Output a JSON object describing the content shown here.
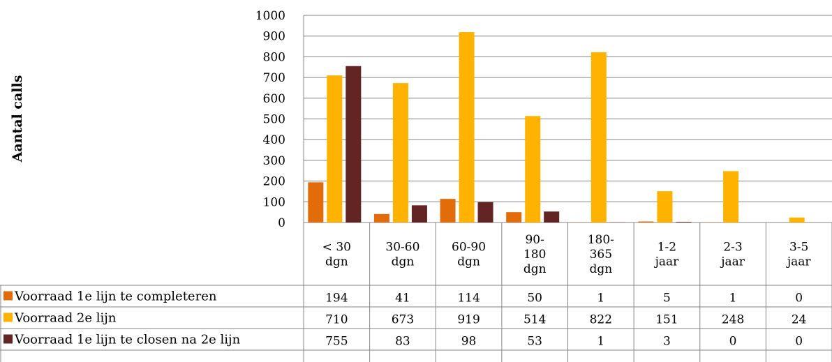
{
  "chart_data": {
    "type": "bar",
    "ylabel": "Aantal calls",
    "ylim": [
      0,
      1000
    ],
    "yticks": [
      0,
      100,
      200,
      300,
      400,
      500,
      600,
      700,
      800,
      900,
      1000
    ],
    "categories": [
      [
        "< 30",
        "dgn"
      ],
      [
        "30-60",
        "dgn"
      ],
      [
        "60-90",
        "dgn"
      ],
      [
        "90-",
        "180",
        "dgn"
      ],
      [
        "180-",
        "365",
        "dgn"
      ],
      [
        "1-2",
        "jaar"
      ],
      [
        "2-3",
        "jaar"
      ],
      [
        "3-5",
        "jaar"
      ]
    ],
    "grid": true,
    "legend": "data-table-left",
    "series": [
      {
        "name": "Voorraad 1e lijn te completeren",
        "color": "#E36C0A",
        "values": [
          194,
          41,
          114,
          50,
          1,
          5,
          1,
          0
        ]
      },
      {
        "name": "Voorraad 2e lijn",
        "color": "#FFB300",
        "values": [
          710,
          673,
          919,
          514,
          822,
          151,
          248,
          24
        ]
      },
      {
        "name": "Voorraad 1e lijn te closen na 2e lijn",
        "color": "#632523",
        "values": [
          755,
          83,
          98,
          53,
          1,
          3,
          0,
          0
        ]
      }
    ]
  }
}
